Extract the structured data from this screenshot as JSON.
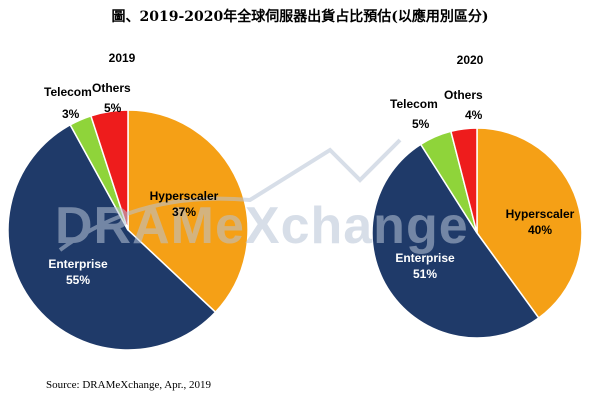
{
  "title": "圖、2019-2020年全球伺服器出貨占比預估(以應用別區分)",
  "source": "Source: DRAMeXchange, Apr., 2019",
  "watermark": "DRAMeXchange",
  "colors": {
    "Hyperscaler": "#f5a016",
    "Enterprise": "#1f3a69",
    "Telecom": "#8fd43a",
    "Others": "#ee1c1c",
    "watermark": "#b8c4d6"
  },
  "chart_data": [
    {
      "type": "pie",
      "title": "2019",
      "slices": [
        {
          "name": "Hyperscaler",
          "pct_label": "37%",
          "value": 37
        },
        {
          "name": "Enterprise",
          "pct_label": "55%",
          "value": 55
        },
        {
          "name": "Telecom",
          "pct_label": "3%",
          "value": 3
        },
        {
          "name": "Others",
          "pct_label": "5%",
          "value": 5
        }
      ]
    },
    {
      "type": "pie",
      "title": "2020",
      "slices": [
        {
          "name": "Hyperscaler",
          "pct_label": "40%",
          "value": 40
        },
        {
          "name": "Enterprise",
          "pct_label": "51%",
          "value": 51
        },
        {
          "name": "Telecom",
          "pct_label": "5%",
          "value": 5
        },
        {
          "name": "Others",
          "pct_label": "4%",
          "value": 4
        }
      ]
    }
  ]
}
